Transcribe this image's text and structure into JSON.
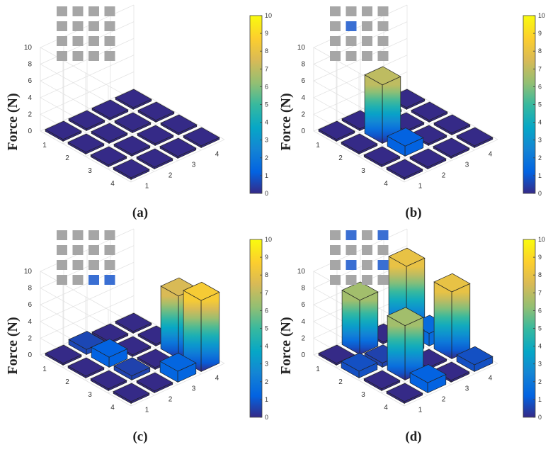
{
  "figure": {
    "zlabel": "Force (N)",
    "colormap": "parula",
    "pad_inactive_color": "#a6a6a6",
    "pad_active_color": "#3a6fd3"
  },
  "chart_data": [
    {
      "type": "bar3d",
      "caption": "(a)",
      "zlabel": "Force (N)",
      "zlim": [
        0,
        10
      ],
      "z_ticks": [
        0,
        2,
        4,
        6,
        8,
        10
      ],
      "row_ticks": [
        1,
        2,
        3,
        4
      ],
      "col_ticks": [
        1,
        2,
        3,
        4
      ],
      "colorbar_ticks": [
        0,
        1,
        2,
        3,
        4,
        5,
        6,
        7,
        8,
        9,
        10
      ],
      "values": [
        [
          0,
          0,
          0,
          0
        ],
        [
          0,
          0,
          0,
          0
        ],
        [
          0,
          0,
          0,
          0
        ],
        [
          0,
          0,
          0,
          0
        ]
      ],
      "active_pads": [
        [
          0,
          0,
          0,
          0
        ],
        [
          0,
          0,
          0,
          0
        ],
        [
          0,
          0,
          0,
          0
        ],
        [
          0,
          0,
          0,
          0
        ]
      ]
    },
    {
      "type": "bar3d",
      "caption": "(b)",
      "zlabel": "Force (N)",
      "zlim": [
        0,
        10
      ],
      "z_ticks": [
        0,
        2,
        4,
        6,
        8,
        10
      ],
      "row_ticks": [
        1,
        2,
        3,
        4
      ],
      "col_ticks": [
        1,
        2,
        3,
        4
      ],
      "colorbar_ticks": [
        0,
        1,
        2,
        3,
        4,
        5,
        6,
        7,
        8,
        9,
        10
      ],
      "values": [
        [
          0,
          0,
          0,
          0
        ],
        [
          0,
          7,
          0,
          0
        ],
        [
          0,
          1.2,
          0,
          0
        ],
        [
          0,
          0,
          0,
          0
        ]
      ],
      "active_pads": [
        [
          0,
          0,
          0,
          0
        ],
        [
          0,
          1,
          0,
          0
        ],
        [
          0,
          0,
          0,
          0
        ],
        [
          0,
          0,
          0,
          0
        ]
      ]
    },
    {
      "type": "bar3d",
      "caption": "(c)",
      "zlabel": "Force (N)",
      "zlim": [
        0,
        10
      ],
      "z_ticks": [
        0,
        2,
        4,
        6,
        8,
        10
      ],
      "row_ticks": [
        1,
        2,
        3,
        4
      ],
      "col_ticks": [
        1,
        2,
        3,
        4
      ],
      "colorbar_ticks": [
        0,
        1,
        2,
        3,
        4,
        5,
        6,
        7,
        8,
        9,
        10
      ],
      "values": [
        [
          0,
          0.6,
          0,
          0
        ],
        [
          0,
          1.2,
          0,
          0
        ],
        [
          0,
          0.5,
          0,
          7.5
        ],
        [
          0,
          0,
          1.3,
          8.5
        ]
      ],
      "active_pads": [
        [
          0,
          0,
          0,
          0
        ],
        [
          0,
          0,
          0,
          0
        ],
        [
          0,
          0,
          0,
          0
        ],
        [
          0,
          0,
          1,
          1
        ]
      ]
    },
    {
      "type": "bar3d",
      "caption": "(d)",
      "zlabel": "Force (N)",
      "zlim": [
        0,
        10
      ],
      "z_ticks": [
        0,
        2,
        4,
        6,
        8,
        10
      ],
      "row_ticks": [
        1,
        2,
        3,
        4
      ],
      "col_ticks": [
        1,
        2,
        3,
        4
      ],
      "colorbar_ticks": [
        0,
        1,
        2,
        3,
        4,
        5,
        6,
        7,
        8,
        9,
        10
      ],
      "values": [
        [
          0,
          6.5,
          0,
          8
        ],
        [
          0.8,
          0.5,
          2.2,
          1.5
        ],
        [
          0,
          6.5,
          0,
          8
        ],
        [
          0,
          1.2,
          0,
          0.8
        ]
      ],
      "active_pads": [
        [
          0,
          1,
          0,
          1
        ],
        [
          0,
          0,
          0,
          0
        ],
        [
          0,
          1,
          0,
          1
        ],
        [
          0,
          0,
          0,
          0
        ]
      ]
    }
  ]
}
